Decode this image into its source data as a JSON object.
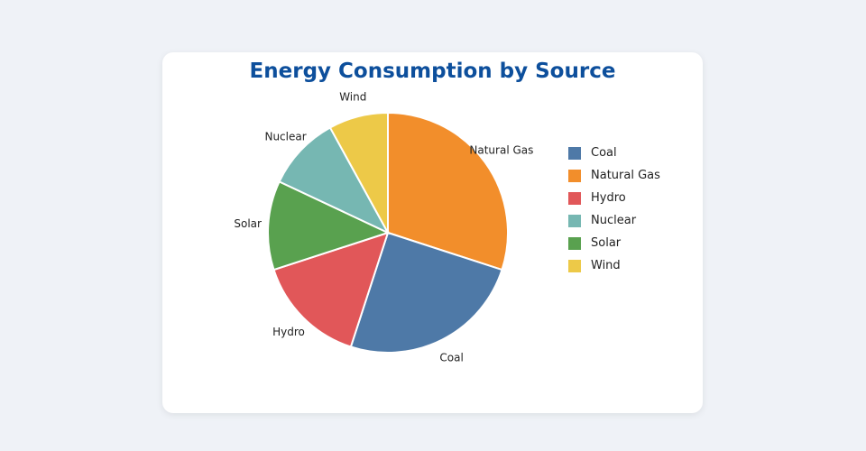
{
  "chart_data": {
    "type": "pie",
    "title": "Energy Consumption by Source",
    "unit": "percent (estimated from slice angles)",
    "slices": [
      {
        "label": "Natural Gas",
        "value": 30,
        "color": "#f28e2b"
      },
      {
        "label": "Coal",
        "value": 25,
        "color": "#4e79a7"
      },
      {
        "label": "Hydro",
        "value": 15,
        "color": "#e15759"
      },
      {
        "label": "Solar",
        "value": 12,
        "color": "#59a14f"
      },
      {
        "label": "Nuclear",
        "value": 10,
        "color": "#76b7b2"
      },
      {
        "label": "Wind",
        "value": 8,
        "color": "#edc948"
      }
    ],
    "legend_position": "right",
    "legend": [
      {
        "label": "Coal",
        "color": "#4e79a7"
      },
      {
        "label": "Natural Gas",
        "color": "#f28e2b"
      },
      {
        "label": "Hydro",
        "color": "#e15759"
      },
      {
        "label": "Nuclear",
        "color": "#76b7b2"
      },
      {
        "label": "Solar",
        "color": "#59a14f"
      },
      {
        "label": "Wind",
        "color": "#edc948"
      }
    ]
  }
}
